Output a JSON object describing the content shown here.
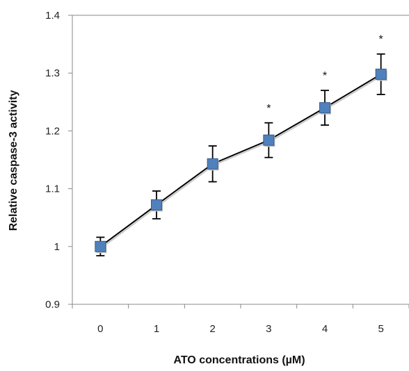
{
  "chart_data": {
    "type": "line",
    "title": "",
    "xlabel": "ATO concentrations (µM)",
    "ylabel": "Relative caspase-3 activity",
    "categories": [
      "0",
      "1",
      "2",
      "3",
      "4",
      "5"
    ],
    "x": [
      0,
      1,
      2,
      3,
      4,
      5
    ],
    "series": [
      {
        "values": [
          1.0,
          1.072,
          1.143,
          1.184,
          1.24,
          1.298
        ],
        "error": [
          0.016,
          0.024,
          0.031,
          0.03,
          0.03,
          0.035
        ],
        "significance": [
          "",
          "",
          "",
          "*",
          "*",
          "*"
        ]
      }
    ],
    "ylim": [
      0.9,
      1.4
    ],
    "yticks": [
      0.9,
      1.0,
      1.1,
      1.2,
      1.3,
      1.4
    ],
    "ytick_labels": [
      "0.9",
      "1",
      "1.1",
      "1.2",
      "1.3",
      "1.4"
    ],
    "grid": false,
    "legend": "none",
    "colors": {
      "marker_fill": "#4f81bd",
      "marker_edge": "#385d8a",
      "line": "#000000",
      "axis": "#888888"
    }
  }
}
